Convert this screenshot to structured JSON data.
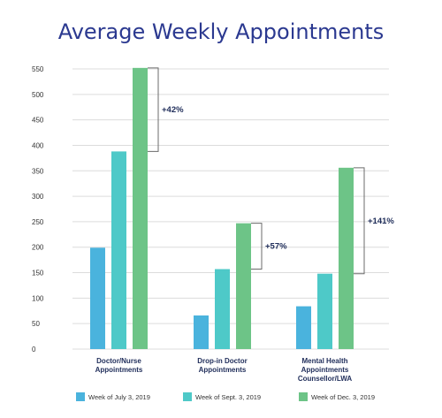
{
  "chart_data": {
    "type": "bar",
    "title": "Average Weekly Appointments",
    "categories": [
      [
        "Doctor/Nurse",
        "Appointments"
      ],
      [
        "Drop-in Doctor",
        "Appointments"
      ],
      [
        "Mental Health",
        "Appointments",
        "Counsellor/LWA"
      ]
    ],
    "series": [
      {
        "name": "Week of July 3, 2019",
        "color": "#4ab3dd",
        "values": [
          199,
          66,
          84
        ]
      },
      {
        "name": "Week of Sept. 3, 2019",
        "color": "#4ec9c8",
        "values": [
          388,
          157,
          148
        ]
      },
      {
        "name": "Week of Dec. 3, 2019",
        "color": "#6dc487",
        "values": [
          552,
          247,
          356
        ]
      }
    ],
    "annotations": [
      "+42%",
      "+57%",
      "+141%"
    ],
    "yticks": [
      "0",
      "50",
      "100",
      "150",
      "200",
      "250",
      "300",
      "350",
      "400",
      "450",
      "500",
      "550"
    ],
    "ylim": [
      0,
      550
    ],
    "grid": true,
    "legend": "bottom",
    "colors": {
      "title": "#2b3990",
      "label": "#1f2d5a",
      "grid": "#dcdcdc",
      "bracket": "#6b6b6b"
    }
  }
}
